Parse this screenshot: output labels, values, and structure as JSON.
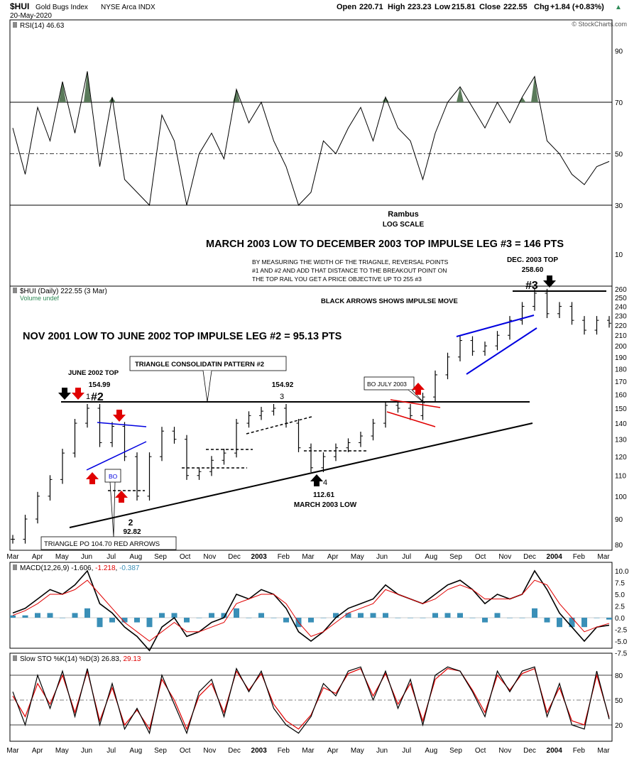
{
  "header": {
    "symbol": "$HUI",
    "name": "Gold Bugs Index",
    "exchange": "NYSE Arca INDX",
    "date": "20-May-2020",
    "open_label": "Open",
    "open": "220.71",
    "high_label": "High",
    "high": "223.23",
    "low_label": "Low",
    "low": "215.81",
    "close_label": "Close",
    "close": "222.55",
    "chg_label": "Chg",
    "chg": "+1.84 (+0.83%)",
    "up_triangle": "▲",
    "watermark": "© StockCharts.com"
  },
  "colors": {
    "price_bar": "#000000",
    "rsi_fill": "#5a7a5a",
    "macd_line": "#000000",
    "signal_line": "#e00000",
    "histogram": "#3a8fb7",
    "stoch_k": "#000000",
    "stoch_d": "#e00000",
    "red_arrow": "#e00000",
    "blue_line": "#0000e0",
    "red_line": "#e00000",
    "legend_green": "#2e8b57",
    "panel_border": "#000000"
  },
  "chart_data": [
    {
      "type": "line",
      "panel": "rsi",
      "label": "RSI(14) 46.63",
      "ylim": [
        20,
        100
      ],
      "y_ticks": [
        30,
        50,
        70,
        90
      ],
      "reference_lines": [
        30,
        50,
        70
      ],
      "series": [
        {
          "name": "RSI(14)",
          "x": [
            "2002-03-01",
            "2002-03-15",
            "2002-04-01",
            "2002-04-15",
            "2002-05-01",
            "2002-05-15",
            "2002-06-01",
            "2002-06-15",
            "2002-07-01",
            "2002-07-15",
            "2002-08-01",
            "2002-08-15",
            "2002-09-01",
            "2002-09-15",
            "2002-10-01",
            "2002-10-15",
            "2002-11-01",
            "2002-11-15",
            "2002-12-01",
            "2002-12-15",
            "2003-01-01",
            "2003-01-15",
            "2003-02-01",
            "2003-02-15",
            "2003-03-01",
            "2003-03-15",
            "2003-04-01",
            "2003-04-15",
            "2003-05-01",
            "2003-05-15",
            "2003-06-01",
            "2003-06-15",
            "2003-07-01",
            "2003-07-15",
            "2003-08-01",
            "2003-08-15",
            "2003-09-01",
            "2003-09-15",
            "2003-10-01",
            "2003-10-15",
            "2003-11-01",
            "2003-11-15",
            "2003-12-01",
            "2003-12-15",
            "2004-01-01",
            "2004-01-15",
            "2004-02-01",
            "2004-02-15",
            "2004-03-01"
          ],
          "values": [
            60,
            42,
            68,
            55,
            78,
            58,
            82,
            45,
            72,
            40,
            35,
            30,
            65,
            55,
            30,
            50,
            58,
            48,
            75,
            62,
            70,
            55,
            45,
            30,
            35,
            55,
            50,
            60,
            68,
            55,
            72,
            60,
            55,
            40,
            58,
            70,
            76,
            68,
            60,
            70,
            62,
            72,
            80,
            55,
            50,
            42,
            38,
            45,
            47
          ]
        }
      ]
    },
    {
      "type": "bar",
      "panel": "price",
      "label": "$HUI (Daily) 222.55 (3 Mar)",
      "legend_secondary": "Volume undef",
      "scale": "log",
      "ylim": [
        78,
        262
      ],
      "y_ticks": [
        80,
        90,
        100,
        110,
        120,
        130,
        140,
        150,
        160,
        170,
        180,
        190,
        200,
        210,
        220,
        230,
        240,
        250,
        260
      ],
      "upper_ticks": [
        10
      ],
      "x_ticks": [
        "Mar",
        "Apr",
        "May",
        "Jun",
        "Jul",
        "Aug",
        "Sep",
        "Oct",
        "Nov",
        "Dec",
        "2003",
        "Feb",
        "Mar",
        "Apr",
        "May",
        "Jun",
        "Jul",
        "Aug",
        "Sep",
        "Oct",
        "Nov",
        "Dec",
        "2004",
        "Feb",
        "Mar"
      ],
      "series": [
        {
          "name": "$HUI",
          "x": [
            "2002-03-01",
            "2002-03-15",
            "2002-04-01",
            "2002-04-15",
            "2002-05-01",
            "2002-05-15",
            "2002-06-01",
            "2002-06-15",
            "2002-07-01",
            "2002-07-15",
            "2002-08-01",
            "2002-08-15",
            "2002-09-01",
            "2002-09-15",
            "2002-10-01",
            "2002-10-15",
            "2002-11-01",
            "2002-11-15",
            "2002-12-01",
            "2002-12-15",
            "2003-01-01",
            "2003-01-15",
            "2003-02-01",
            "2003-02-15",
            "2003-03-01",
            "2003-03-15",
            "2003-04-01",
            "2003-04-15",
            "2003-05-01",
            "2003-05-15",
            "2003-06-01",
            "2003-06-15",
            "2003-07-01",
            "2003-07-15",
            "2003-08-01",
            "2003-08-15",
            "2003-09-01",
            "2003-09-15",
            "2003-10-01",
            "2003-10-15",
            "2003-11-01",
            "2003-11-15",
            "2003-12-01",
            "2003-12-15",
            "2004-01-01",
            "2004-01-15",
            "2004-02-01",
            "2004-02-15",
            "2004-03-01"
          ],
          "values": [
            82,
            90,
            100,
            108,
            122,
            140,
            150,
            128,
            138,
            120,
            100,
            120,
            135,
            130,
            110,
            112,
            118,
            122,
            140,
            145,
            148,
            150,
            140,
            125,
            114,
            120,
            125,
            128,
            132,
            140,
            152,
            150,
            145,
            158,
            175,
            190,
            205,
            195,
            200,
            210,
            225,
            240,
            255,
            232,
            240,
            225,
            215,
            225,
            222
          ]
        }
      ]
    },
    {
      "type": "line",
      "panel": "macd",
      "label": "MACD(12,26,9) -1.606, -1.218, -0.387",
      "label_prefix": "MACD(12,26,9)",
      "label_macd": "-1.606",
      "label_signal": "-1.218",
      "label_hist": "-0.387",
      "ylim": [
        -8.5,
        11.5
      ],
      "y_ticks": [
        -7.5,
        -5.0,
        -2.5,
        0.0,
        2.5,
        5.0,
        7.5,
        10.0
      ],
      "y_tick_labels": [
        "-7.5",
        "-5.0",
        "-2.5",
        "0.0",
        "2.5",
        "5.0",
        "7.5",
        "10.0"
      ],
      "series": [
        {
          "name": "MACD",
          "values": [
            1,
            2,
            4,
            6,
            5,
            7,
            10,
            3,
            1,
            -2,
            -4,
            -7,
            -2,
            0,
            -4,
            -3,
            -1,
            0,
            5,
            4,
            6,
            5,
            2,
            -3,
            -5,
            -3,
            0,
            2,
            3,
            4,
            7,
            5,
            4,
            3,
            5,
            7,
            8,
            6,
            3,
            5,
            4,
            5,
            10,
            6,
            1,
            -2,
            -5,
            -2,
            -1.6
          ]
        },
        {
          "name": "Signal",
          "values": [
            0.5,
            1.5,
            3,
            5,
            5,
            6,
            8,
            5,
            2,
            -1,
            -3,
            -5,
            -3,
            -1,
            -3,
            -3,
            -2,
            -1,
            3,
            4,
            5,
            5,
            3,
            -1,
            -4,
            -3,
            -1,
            1,
            2,
            3,
            6,
            5,
            4,
            3,
            4,
            6,
            7,
            6,
            4,
            4,
            4,
            5,
            8,
            7,
            3,
            0,
            -3,
            -2,
            -1.2
          ]
        },
        {
          "name": "Histogram",
          "values": [
            0.5,
            0.5,
            1,
            1,
            0,
            1,
            2,
            -2,
            -1,
            -1,
            -1,
            -2,
            1,
            1,
            -1,
            0,
            1,
            1,
            2,
            0,
            1,
            0,
            -1,
            -2,
            -1,
            0,
            1,
            1,
            1,
            1,
            1,
            0,
            0,
            0,
            1,
            1,
            1,
            0,
            -1,
            1,
            0,
            0,
            2,
            -1,
            -2,
            -2,
            -2,
            0,
            -0.4
          ]
        }
      ]
    },
    {
      "type": "line",
      "panel": "stochastic",
      "label": "Slow STO %K(14) %D(3) 26.83, 29.13",
      "label_prefix": "Slow STO %K(14) %D(3)",
      "label_k": "26.83",
      "label_d": "29.13",
      "ylim": [
        5,
        95
      ],
      "y_ticks": [
        20,
        50,
        80
      ],
      "reference_lines": [
        20,
        50,
        80
      ],
      "series": [
        {
          "name": "%K",
          "values": [
            60,
            20,
            80,
            40,
            85,
            30,
            88,
            20,
            70,
            15,
            40,
            10,
            80,
            45,
            10,
            60,
            75,
            30,
            88,
            60,
            85,
            40,
            20,
            10,
            30,
            70,
            55,
            85,
            90,
            50,
            85,
            40,
            75,
            20,
            80,
            90,
            85,
            60,
            30,
            85,
            60,
            85,
            90,
            30,
            70,
            20,
            15,
            85,
            27
          ]
        },
        {
          "name": "%D",
          "values": [
            55,
            30,
            70,
            45,
            80,
            35,
            85,
            25,
            65,
            20,
            38,
            15,
            75,
            50,
            15,
            55,
            70,
            35,
            85,
            62,
            82,
            45,
            25,
            15,
            32,
            65,
            58,
            82,
            88,
            55,
            82,
            45,
            70,
            25,
            75,
            88,
            85,
            62,
            35,
            80,
            62,
            82,
            88,
            35,
            65,
            25,
            20,
            80,
            29
          ]
        }
      ]
    }
  ],
  "annotations": {
    "rambus": "Rambus",
    "log_scale": "LOG SCALE",
    "leg3_title": "MARCH 2003 LOW TO DECEMBER 2003 TOP IMPULSE LEG #3 = 146 PTS",
    "measure_line1": "BY MEASURING THE WIDTH OF THE TRIAGNLE, REVERSAL POINTS",
    "measure_line2": "#1 AND #2 AND ADD THAT DISTANCE TO THE BREAKOUT POINT ON",
    "measure_line3": "THE TOP RAIL YOU GET A PRICE  OBJECTIVE UP TO 255  #3",
    "dec_top_label": "DEC. 2003 TOP",
    "dec_top_value": "258.60",
    "black_arrows": "BLACK ARROWS SHOWS IMPULSE MOVE",
    "leg2_title": "NOV 2001 LOW TO JUNE 2002 TOP IMPULSE LEG #2 = 95.13 PTS",
    "triangle_box": "TRIANGLE CONSOLIDATIN PATTERN #2",
    "june_top_label": "JUNE 2002 TOP",
    "june_top_value": "154.99",
    "point1": "1",
    "hash2": "#2",
    "hash3": "#3",
    "point3_value": "154.92",
    "point3": "3",
    "bo_july": "BO JULY 2003",
    "bo": "BO",
    "point4": "4",
    "point4_value": "112.61",
    "march_low": "MARCH 2003 LOW",
    "point2": "2",
    "point2_value": "92.82",
    "triangle_po": "TRIANGLE PO 104.70 RED ARROWS"
  }
}
